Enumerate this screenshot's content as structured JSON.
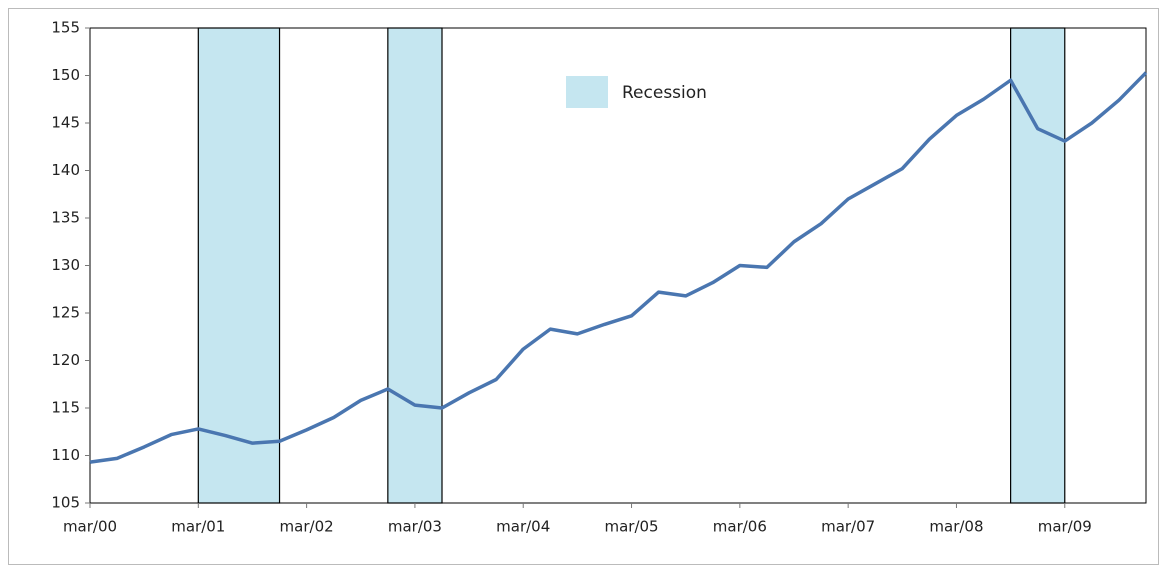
{
  "chart_data": {
    "type": "line",
    "categories": [
      "mar/00",
      null,
      null,
      null,
      "mar/01",
      null,
      null,
      null,
      "mar/02",
      null,
      null,
      null,
      "mar/03",
      null,
      null,
      null,
      "mar/04",
      null,
      null,
      null,
      "mar/05",
      null,
      null,
      null,
      "mar/06",
      null,
      null,
      null,
      "mar/07",
      null,
      null,
      null,
      "mar/08",
      null,
      null,
      null,
      "mar/09",
      null,
      null,
      null
    ],
    "values": [
      109.3,
      109.7,
      110.9,
      112.2,
      112.8,
      112.1,
      111.3,
      111.5,
      112.7,
      114.0,
      115.8,
      117.0,
      115.3,
      115.0,
      116.6,
      118.0,
      121.2,
      123.3,
      122.8,
      123.8,
      124.7,
      127.2,
      126.8,
      128.2,
      130.0,
      129.8,
      132.5,
      134.4,
      137.0,
      138.6,
      140.2,
      143.3,
      145.8,
      147.5,
      149.5,
      144.4,
      143.1,
      145.0,
      147.4,
      150.3
    ],
    "color": "#4a76b0",
    "recession": {
      "name": "Recession",
      "color": "#c5e6f0",
      "ranges": [
        [
          4,
          7
        ],
        [
          11,
          13
        ],
        [
          34,
          36
        ]
      ]
    },
    "ylim": [
      105,
      155
    ],
    "yticks": [
      105,
      110,
      115,
      120,
      125,
      130,
      135,
      140,
      145,
      150,
      155
    ]
  }
}
